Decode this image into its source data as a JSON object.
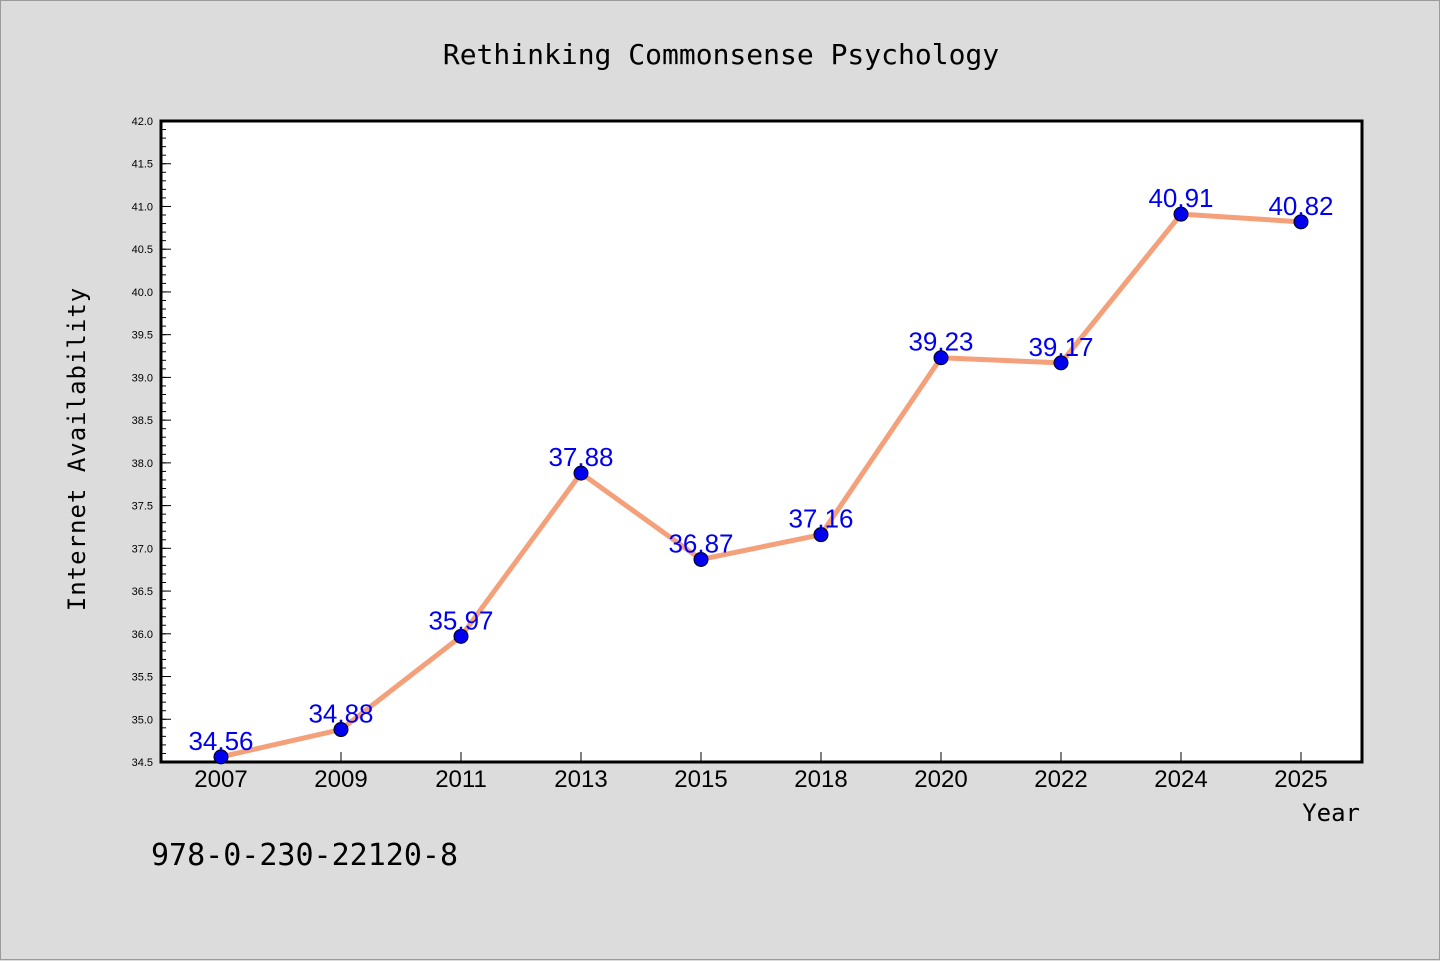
{
  "chart_data": {
    "type": "line",
    "title": "Rethinking Commonsense Psychology",
    "xlabel": "Year",
    "ylabel": "Internet Availability",
    "categories": [
      "2007",
      "2009",
      "2011",
      "2013",
      "2015",
      "2018",
      "2020",
      "2022",
      "2024",
      "2025"
    ],
    "series": [
      {
        "values": [
          34.56,
          34.88,
          35.97,
          37.88,
          36.87,
          37.16,
          39.23,
          39.17,
          40.91,
          40.82
        ],
        "data_labels": [
          "34.56",
          "34.88",
          "35.97",
          "37.88",
          "36.87",
          "37.16",
          "39.23",
          "39.17",
          "40.91",
          "40.82"
        ],
        "line_color": "#f4a07a",
        "marker_color": "#0000ee",
        "label_color": "#0000ee"
      }
    ],
    "ylim": [
      34.5,
      42.0
    ],
    "yticks": [
      "34.5",
      "35.0",
      "35.5",
      "36.0",
      "36.5",
      "37.0",
      "37.5",
      "38.0",
      "38.5",
      "39.0",
      "39.5",
      "40.0",
      "40.5",
      "41.0",
      "41.5",
      "42.0"
    ],
    "grid": false,
    "legend": "none"
  },
  "footer": {
    "isbn": "978-0-230-22120-8"
  },
  "colors": {
    "background": "#dcdcdc",
    "plot_background": "#ffffff",
    "axis": "#000000"
  }
}
